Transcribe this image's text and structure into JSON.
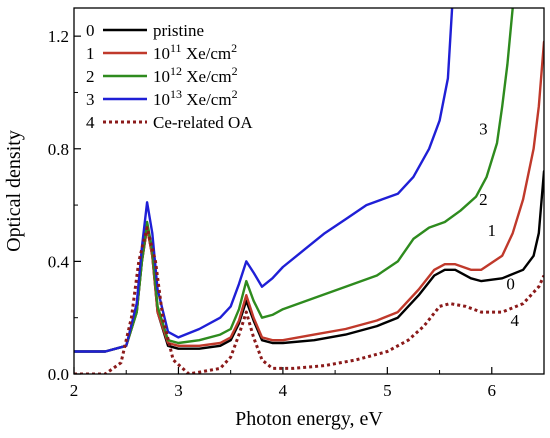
{
  "chart_data": {
    "type": "line",
    "title": "",
    "xlabel": "Photon energy, eV",
    "ylabel": "Optical density",
    "xlim": [
      2.0,
      6.5
    ],
    "ylim": [
      0.0,
      1.3
    ],
    "x_ticks": [
      "2",
      "3",
      "4",
      "5",
      "6"
    ],
    "y_ticks": [
      "0.0",
      "0.4",
      "0.8",
      "1.2"
    ],
    "grid": false,
    "legend_position": "top-left",
    "legend": [
      {
        "index": "0",
        "name": "pristine",
        "sup": ""
      },
      {
        "index": "1",
        "name_base": "10",
        "name_exp": "11",
        "name_rest": " Xe/cm",
        "name_unit_exp": "2"
      },
      {
        "index": "2",
        "name_base": "10",
        "name_exp": "12",
        "name_rest": " Xe/cm",
        "name_unit_exp": "2"
      },
      {
        "index": "3",
        "name_base": "10",
        "name_exp": "13",
        "name_rest": " Xe/cm",
        "name_unit_exp": "2"
      },
      {
        "index": "4",
        "name": "Ce-related OA",
        "sup": ""
      }
    ],
    "curve_labels": [
      {
        "text": "3",
        "x": 5.92,
        "y": 0.85
      },
      {
        "text": "2",
        "x": 5.92,
        "y": 0.6
      },
      {
        "text": "1",
        "x": 6.0,
        "y": 0.49
      },
      {
        "text": "0",
        "x": 6.18,
        "y": 0.3
      },
      {
        "text": "4",
        "x": 6.22,
        "y": 0.17
      }
    ],
    "series": [
      {
        "name": "pristine",
        "color": "#000000",
        "style": "solid",
        "x": [
          2.0,
          2.3,
          2.5,
          2.6,
          2.65,
          2.7,
          2.75,
          2.8,
          2.9,
          3.0,
          3.2,
          3.4,
          3.5,
          3.58,
          3.65,
          3.72,
          3.8,
          3.9,
          4.0,
          4.3,
          4.6,
          4.9,
          5.1,
          5.3,
          5.45,
          5.55,
          5.65,
          5.8,
          5.9,
          6.1,
          6.3,
          6.4,
          6.45,
          6.5
        ],
        "y": [
          0.08,
          0.08,
          0.1,
          0.22,
          0.4,
          0.52,
          0.42,
          0.22,
          0.1,
          0.09,
          0.09,
          0.1,
          0.12,
          0.18,
          0.26,
          0.19,
          0.12,
          0.11,
          0.11,
          0.12,
          0.14,
          0.17,
          0.2,
          0.28,
          0.35,
          0.37,
          0.37,
          0.34,
          0.33,
          0.34,
          0.37,
          0.42,
          0.5,
          0.72
        ]
      },
      {
        "name": "10^11 Xe/cm^2",
        "color": "#c0392b",
        "style": "solid",
        "x": [
          2.0,
          2.3,
          2.5,
          2.6,
          2.65,
          2.7,
          2.75,
          2.8,
          2.9,
          3.0,
          3.2,
          3.4,
          3.5,
          3.58,
          3.65,
          3.72,
          3.8,
          3.9,
          4.0,
          4.3,
          4.6,
          4.9,
          5.1,
          5.3,
          5.45,
          5.55,
          5.65,
          5.8,
          5.9,
          6.1,
          6.2,
          6.3,
          6.4,
          6.45,
          6.5
        ],
        "y": [
          0.08,
          0.08,
          0.1,
          0.22,
          0.4,
          0.52,
          0.42,
          0.22,
          0.11,
          0.1,
          0.1,
          0.11,
          0.13,
          0.19,
          0.28,
          0.2,
          0.13,
          0.12,
          0.12,
          0.14,
          0.16,
          0.19,
          0.22,
          0.3,
          0.37,
          0.39,
          0.39,
          0.37,
          0.37,
          0.42,
          0.5,
          0.62,
          0.8,
          0.95,
          1.18
        ]
      },
      {
        "name": "10^12 Xe/cm^2",
        "color": "#2e8b1e",
        "style": "solid",
        "x": [
          2.0,
          2.3,
          2.5,
          2.6,
          2.65,
          2.7,
          2.75,
          2.8,
          2.9,
          3.0,
          3.2,
          3.4,
          3.5,
          3.58,
          3.65,
          3.72,
          3.8,
          3.9,
          4.0,
          4.3,
          4.6,
          4.9,
          5.1,
          5.25,
          5.4,
          5.55,
          5.7,
          5.85,
          5.95,
          6.05,
          6.1,
          6.15,
          6.2
        ],
        "y": [
          0.08,
          0.08,
          0.1,
          0.22,
          0.4,
          0.54,
          0.44,
          0.24,
          0.12,
          0.11,
          0.12,
          0.14,
          0.16,
          0.23,
          0.33,
          0.26,
          0.2,
          0.21,
          0.23,
          0.27,
          0.31,
          0.35,
          0.4,
          0.48,
          0.52,
          0.54,
          0.58,
          0.63,
          0.7,
          0.82,
          0.95,
          1.1,
          1.3
        ]
      },
      {
        "name": "10^13 Xe/cm^2",
        "color": "#1f1fd6",
        "style": "solid",
        "x": [
          2.0,
          2.3,
          2.5,
          2.6,
          2.65,
          2.7,
          2.75,
          2.8,
          2.9,
          3.0,
          3.2,
          3.4,
          3.5,
          3.58,
          3.65,
          3.72,
          3.8,
          3.9,
          4.0,
          4.2,
          4.4,
          4.6,
          4.8,
          4.95,
          5.1,
          5.25,
          5.4,
          5.5,
          5.58,
          5.62
        ],
        "y": [
          0.08,
          0.08,
          0.1,
          0.25,
          0.45,
          0.61,
          0.5,
          0.3,
          0.15,
          0.13,
          0.16,
          0.2,
          0.24,
          0.32,
          0.4,
          0.36,
          0.31,
          0.34,
          0.38,
          0.44,
          0.5,
          0.55,
          0.6,
          0.62,
          0.64,
          0.7,
          0.8,
          0.9,
          1.05,
          1.3
        ]
      },
      {
        "name": "Ce-related OA",
        "color": "#8b1a1a",
        "style": "dotted",
        "x": [
          2.0,
          2.3,
          2.45,
          2.55,
          2.62,
          2.7,
          2.78,
          2.85,
          2.95,
          3.1,
          3.4,
          3.5,
          3.58,
          3.65,
          3.72,
          3.8,
          3.9,
          4.1,
          4.4,
          4.7,
          5.0,
          5.2,
          5.35,
          5.5,
          5.6,
          5.75,
          5.9,
          6.1,
          6.3,
          6.45,
          6.5
        ],
        "y": [
          0.0,
          0.0,
          0.04,
          0.2,
          0.4,
          0.52,
          0.4,
          0.2,
          0.05,
          0.0,
          0.02,
          0.06,
          0.14,
          0.22,
          0.13,
          0.05,
          0.02,
          0.02,
          0.03,
          0.05,
          0.08,
          0.12,
          0.17,
          0.24,
          0.25,
          0.24,
          0.22,
          0.22,
          0.25,
          0.31,
          0.35
        ]
      }
    ]
  }
}
